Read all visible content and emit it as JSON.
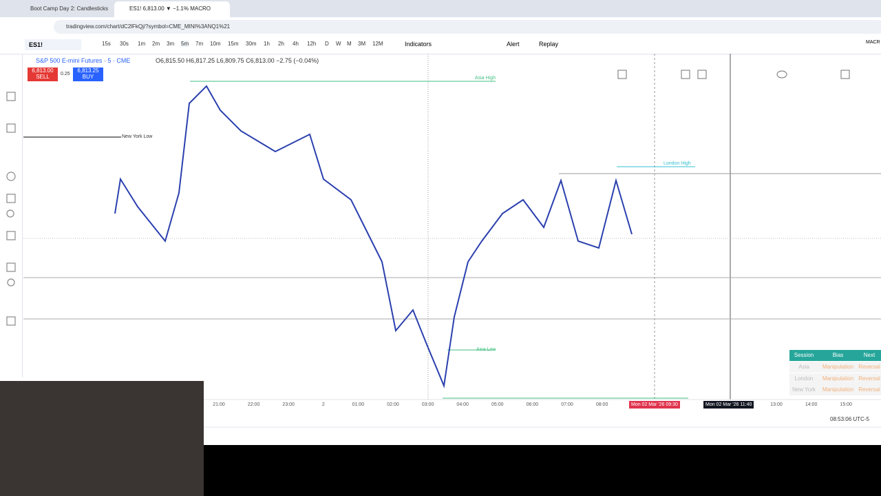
{
  "browser": {
    "tabs": [
      "Boot Camp Day 2: Candlesticks",
      "ES1! 6,813.00 ▼ −1.1% MACRO"
    ],
    "url": "tradingview.com/chart/dC2lFkQj/?symbol=CME_MINI%3ANQ1%21"
  },
  "toolbar": {
    "symbol": "ES1!",
    "timeframes": [
      "15s",
      "30s",
      "1m",
      "2m",
      "3m",
      "5m",
      "7m",
      "10m",
      "15m",
      "30m",
      "1h",
      "2h",
      "4h",
      "12h",
      "D",
      "W",
      "M",
      "3M",
      "12M"
    ],
    "indicators": "Indicators",
    "alert": "Alert",
    "replay": "Replay",
    "right": "MACR"
  },
  "chart": {
    "legend": "S&P 500 E-mini Futures · 5 · CME",
    "ohlc": "O6,815.50 H6,817.25 L6,809.75 C6,813.00 −2.75 (−0.04%)",
    "sell_price": "6,813.00",
    "sell": "SELL",
    "spread": "0.25",
    "buy_price": "6,813.25",
    "buy": "BUY",
    "levels": {
      "asia_high": "Asia High",
      "new_york_low": "New York Low",
      "london_high": "London High",
      "asia_low": "Asia Low"
    },
    "time_axis": {
      "left": [
        "21:00",
        "22:00",
        "23:00",
        "2",
        "01:00",
        "02:00",
        "03:00",
        "04:00",
        "05:00",
        "06:00",
        "07:00",
        "08:00"
      ],
      "right": [
        "13:00",
        "14:00",
        "15:00"
      ],
      "cursor_1": "Mon 02 Mar '26  09:30",
      "cursor_2": "Mon 02 Mar '26  11:40"
    },
    "clock": "08:53:06 UTC-5"
  },
  "session_table": {
    "header": [
      "Session",
      "Bias",
      "Next"
    ],
    "rows": [
      [
        "Asia",
        "Manipulation",
        "Reversal"
      ],
      [
        "London",
        "Manipulation",
        "Reversal"
      ],
      [
        "New York",
        "Manipulation",
        "Reversal"
      ]
    ]
  }
}
